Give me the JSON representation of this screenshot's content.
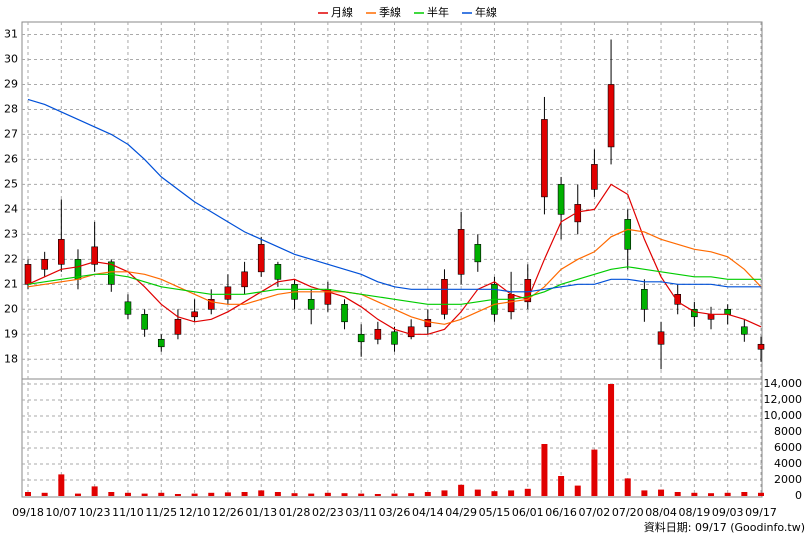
{
  "chart_data": {
    "type": "candlestick",
    "legend": [
      {
        "name": "月線",
        "color": "#e00000"
      },
      {
        "name": "季線",
        "color": "#ff6a00"
      },
      {
        "name": "半年",
        "color": "#00cc00"
      },
      {
        "name": "年線",
        "color": "#0050d8"
      }
    ],
    "footer": "資料日期: 09/17 (Goodinfo.tw)",
    "up_color": "#e00000",
    "down_color": "#00b000",
    "grid": true,
    "categories": [
      "09/18",
      null,
      "10/07",
      null,
      "10/23",
      null,
      "11/10",
      null,
      "11/25",
      null,
      "12/10",
      null,
      "12/26",
      null,
      "01/13",
      null,
      "01/28",
      null,
      "02/23",
      null,
      "03/11",
      null,
      "03/26",
      null,
      "04/14",
      null,
      "04/29",
      null,
      "05/15",
      null,
      "06/01",
      null,
      "06/16",
      null,
      "07/02",
      null,
      "07/20",
      null,
      "08/04",
      null,
      "08/19",
      null,
      "09/03",
      null,
      "09/17"
    ],
    "open": [
      21.0,
      21.6,
      21.8,
      22.0,
      21.8,
      21.9,
      20.3,
      19.8,
      18.8,
      19.0,
      19.7,
      20.0,
      20.4,
      20.9,
      21.5,
      21.8,
      21.0,
      20.4,
      20.2,
      20.2,
      19.0,
      18.8,
      19.1,
      18.9,
      19.3,
      19.8,
      21.4,
      22.6,
      21.0,
      19.9,
      20.3,
      24.5,
      25.0,
      23.5,
      24.8,
      26.5,
      23.6,
      20.8,
      18.6,
      20.2,
      20.0,
      19.6,
      20.0,
      19.3,
      18.4
    ],
    "close": [
      21.8,
      22.0,
      22.8,
      21.2,
      22.5,
      21.0,
      19.8,
      19.2,
      18.5,
      19.6,
      19.9,
      20.4,
      20.9,
      21.5,
      22.6,
      21.2,
      20.4,
      20.0,
      20.8,
      19.5,
      18.7,
      19.2,
      18.6,
      19.3,
      19.6,
      21.2,
      23.2,
      21.9,
      19.8,
      20.6,
      21.2,
      27.6,
      23.8,
      24.2,
      25.8,
      29.0,
      22.4,
      20.0,
      19.1,
      20.6,
      19.7,
      19.8,
      19.8,
      19.0,
      18.6
    ],
    "high": [
      22.0,
      22.3,
      24.4,
      22.4,
      23.5,
      22.0,
      20.6,
      20.0,
      19.0,
      20.0,
      20.4,
      20.8,
      21.4,
      21.9,
      22.9,
      21.9,
      21.2,
      20.8,
      21.1,
      20.4,
      19.4,
      19.5,
      19.3,
      19.6,
      20.0,
      21.6,
      23.9,
      23.0,
      21.3,
      21.5,
      21.8,
      28.5,
      25.3,
      25.0,
      26.4,
      30.8,
      24.0,
      21.2,
      19.5,
      21.0,
      20.3,
      20.1,
      20.2,
      19.6,
      18.9
    ],
    "low": [
      20.8,
      21.3,
      21.5,
      20.8,
      21.5,
      20.7,
      19.6,
      18.9,
      18.3,
      18.8,
      19.5,
      19.8,
      20.2,
      20.6,
      21.3,
      20.9,
      20.0,
      19.4,
      19.9,
      19.2,
      18.1,
      18.6,
      18.3,
      18.8,
      19.0,
      19.6,
      21.0,
      21.5,
      19.5,
      19.6,
      20.0,
      23.8,
      22.8,
      23.0,
      24.5,
      25.8,
      21.6,
      19.5,
      17.6,
      19.8,
      19.3,
      19.2,
      19.4,
      18.7,
      17.9
    ],
    "series": [
      {
        "name": "月線",
        "color": "#e00000",
        "values": [
          21.0,
          21.3,
          21.6,
          21.7,
          21.9,
          21.8,
          21.5,
          20.9,
          20.2,
          19.7,
          19.5,
          19.6,
          19.9,
          20.3,
          20.7,
          21.1,
          21.2,
          20.9,
          20.7,
          20.5,
          20.1,
          19.6,
          19.2,
          19.0,
          19.0,
          19.2,
          19.9,
          20.8,
          21.1,
          20.6,
          20.4,
          22.0,
          23.5,
          23.9,
          24.0,
          25.0,
          24.6,
          22.8,
          21.3,
          20.3,
          19.9,
          19.8,
          19.8,
          19.6,
          19.3
        ]
      },
      {
        "name": "季線",
        "color": "#ff6a00",
        "values": [
          20.9,
          21.0,
          21.1,
          21.2,
          21.4,
          21.5,
          21.5,
          21.4,
          21.2,
          20.9,
          20.6,
          20.3,
          20.2,
          20.2,
          20.4,
          20.6,
          20.7,
          20.7,
          20.7,
          20.7,
          20.6,
          20.3,
          20.0,
          19.7,
          19.5,
          19.4,
          19.6,
          19.9,
          20.2,
          20.3,
          20.4,
          20.9,
          21.6,
          22.0,
          22.3,
          22.9,
          23.2,
          23.1,
          22.8,
          22.6,
          22.4,
          22.3,
          22.1,
          21.6,
          20.9
        ]
      },
      {
        "name": "半年",
        "color": "#00cc00",
        "values": [
          21.0,
          21.1,
          21.2,
          21.3,
          21.4,
          21.4,
          21.3,
          21.1,
          20.9,
          20.8,
          20.7,
          20.6,
          20.6,
          20.6,
          20.7,
          20.8,
          20.8,
          20.8,
          20.8,
          20.7,
          20.6,
          20.5,
          20.4,
          20.3,
          20.2,
          20.2,
          20.2,
          20.3,
          20.4,
          20.4,
          20.5,
          20.7,
          21.0,
          21.2,
          21.4,
          21.6,
          21.7,
          21.6,
          21.5,
          21.4,
          21.3,
          21.3,
          21.2,
          21.2,
          21.2
        ]
      },
      {
        "name": "年線",
        "color": "#0050d8",
        "values": [
          28.4,
          28.2,
          27.9,
          27.6,
          27.3,
          27.0,
          26.6,
          26.0,
          25.3,
          24.8,
          24.3,
          23.9,
          23.5,
          23.1,
          22.8,
          22.5,
          22.2,
          22.0,
          21.8,
          21.6,
          21.4,
          21.1,
          20.9,
          20.8,
          20.8,
          20.8,
          20.8,
          20.8,
          20.8,
          20.7,
          20.7,
          20.8,
          20.9,
          21.0,
          21.0,
          21.2,
          21.2,
          21.1,
          21.1,
          21.0,
          21.0,
          21.0,
          20.9,
          20.9,
          20.9
        ]
      }
    ],
    "ylim": [
      17.25,
      31.5
    ],
    "yticks": [
      18,
      19,
      20,
      21,
      22,
      23,
      24,
      25,
      26,
      27,
      28,
      29,
      30,
      31
    ],
    "volume": {
      "color": "#e00000",
      "values": [
        500,
        400,
        2700,
        300,
        1200,
        500,
        400,
        300,
        400,
        250,
        300,
        400,
        450,
        500,
        700,
        500,
        350,
        300,
        400,
        350,
        300,
        250,
        300,
        350,
        500,
        700,
        1400,
        800,
        600,
        700,
        900,
        6500,
        2500,
        1300,
        5800,
        14000,
        2200,
        700,
        800,
        500,
        400,
        350,
        400,
        500,
        400
      ],
      "ylim": [
        0,
        14500
      ],
      "yticks": [
        0,
        2000,
        4000,
        6000,
        8000,
        {
          "value": 10000,
          "label": "10,000"
        },
        {
          "value": 12000,
          "label": "12,000"
        },
        {
          "value": 14000,
          "label": "14,000"
        }
      ]
    }
  }
}
